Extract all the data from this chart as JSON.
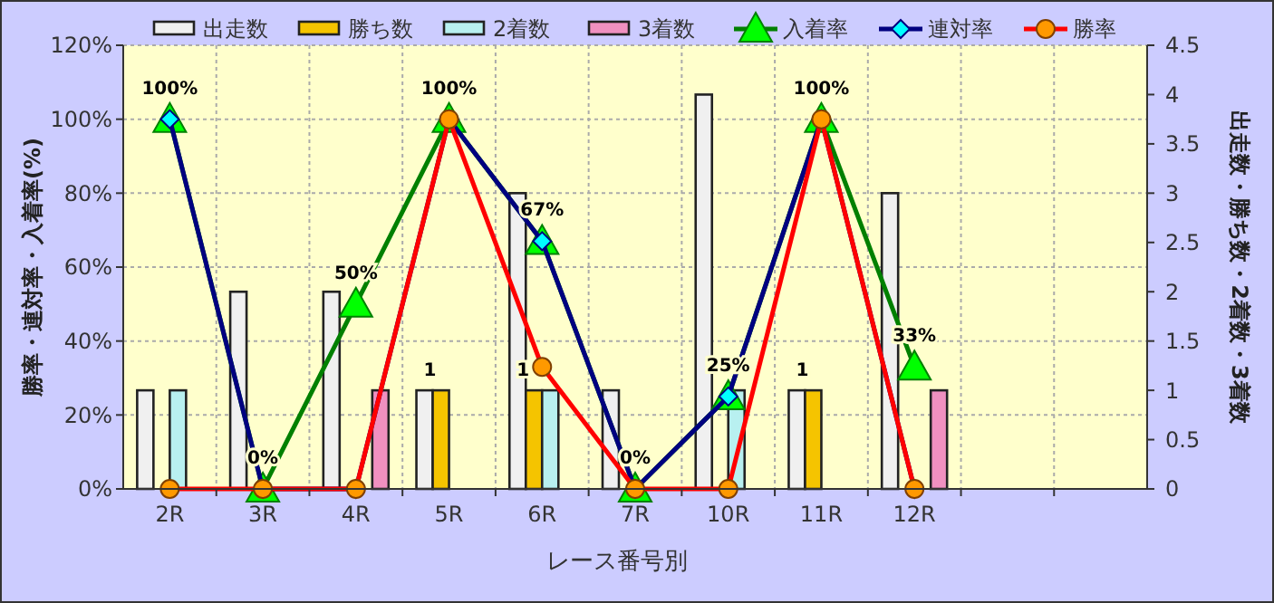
{
  "chart_data": {
    "type": "bar",
    "xlabel": "レース番号別",
    "ylabel": "勝率・連対率・入着率(%)",
    "y2label": "出走数・勝ち数・2着数・3着数",
    "categories": [
      "2R",
      "3R",
      "4R",
      "5R",
      "6R",
      "7R",
      "10R",
      "11R",
      "12R",
      null,
      null
    ],
    "series": [
      {
        "name": "出走数",
        "axis": "y2",
        "color": "#f0f0f0",
        "values": [
          1,
          2,
          2,
          1,
          3,
          1,
          4,
          1,
          3,
          null,
          null
        ]
      },
      {
        "name": "勝ち数",
        "axis": "y2",
        "color": "#f5c400",
        "values": [
          null,
          null,
          null,
          1,
          1,
          null,
          null,
          1,
          null,
          null,
          null
        ],
        "value_labels": [
          null,
          null,
          null,
          "1",
          "1",
          null,
          null,
          "1",
          null,
          null,
          null
        ]
      },
      {
        "name": "2着数",
        "axis": "y2",
        "color": "#b8f0f0",
        "values": [
          1,
          null,
          null,
          null,
          1,
          null,
          1,
          null,
          null,
          null,
          null
        ]
      },
      {
        "name": "3着数",
        "axis": "y2",
        "color": "#f090c0",
        "values": [
          null,
          null,
          1,
          null,
          null,
          null,
          null,
          null,
          1,
          null,
          null
        ]
      },
      {
        "name": "入着率",
        "type": "line",
        "axis": "y",
        "color": "#008000",
        "marker": "triangle",
        "values": [
          100,
          0,
          50,
          100,
          67,
          0,
          25,
          100,
          33,
          null,
          null
        ],
        "value_labels": [
          "100%",
          "0%",
          "50%",
          "100%",
          "67%",
          "0%",
          "25%",
          "100%",
          "33%",
          null,
          null
        ]
      },
      {
        "name": "連対率",
        "type": "line",
        "axis": "y",
        "color": "#000080",
        "marker": "diamond",
        "values": [
          100,
          0,
          0,
          100,
          67,
          0,
          25,
          100,
          0,
          null,
          null
        ]
      },
      {
        "name": "勝率",
        "type": "line",
        "axis": "y",
        "color": "#ff0000",
        "marker": "circle",
        "values": [
          0,
          0,
          0,
          100,
          33,
          0,
          0,
          100,
          0,
          null,
          null
        ]
      }
    ],
    "ylim": [
      0,
      120
    ],
    "yticks": [
      {
        "value": 0,
        "label": "0%"
      },
      {
        "value": 20,
        "label": "20%"
      },
      {
        "value": 40,
        "label": "40%"
      },
      {
        "value": 60,
        "label": "60%"
      },
      {
        "value": 80,
        "label": "80%"
      },
      {
        "value": 100,
        "label": "100%"
      },
      {
        "value": 120,
        "label": "120%"
      }
    ],
    "y2lim": [
      0,
      4.5
    ],
    "y2ticks": [
      0,
      0.5,
      1,
      1.5,
      2,
      2.5,
      3,
      3.5,
      4,
      4.5
    ],
    "grid": true,
    "legend": "top",
    "line_style": "solid"
  }
}
